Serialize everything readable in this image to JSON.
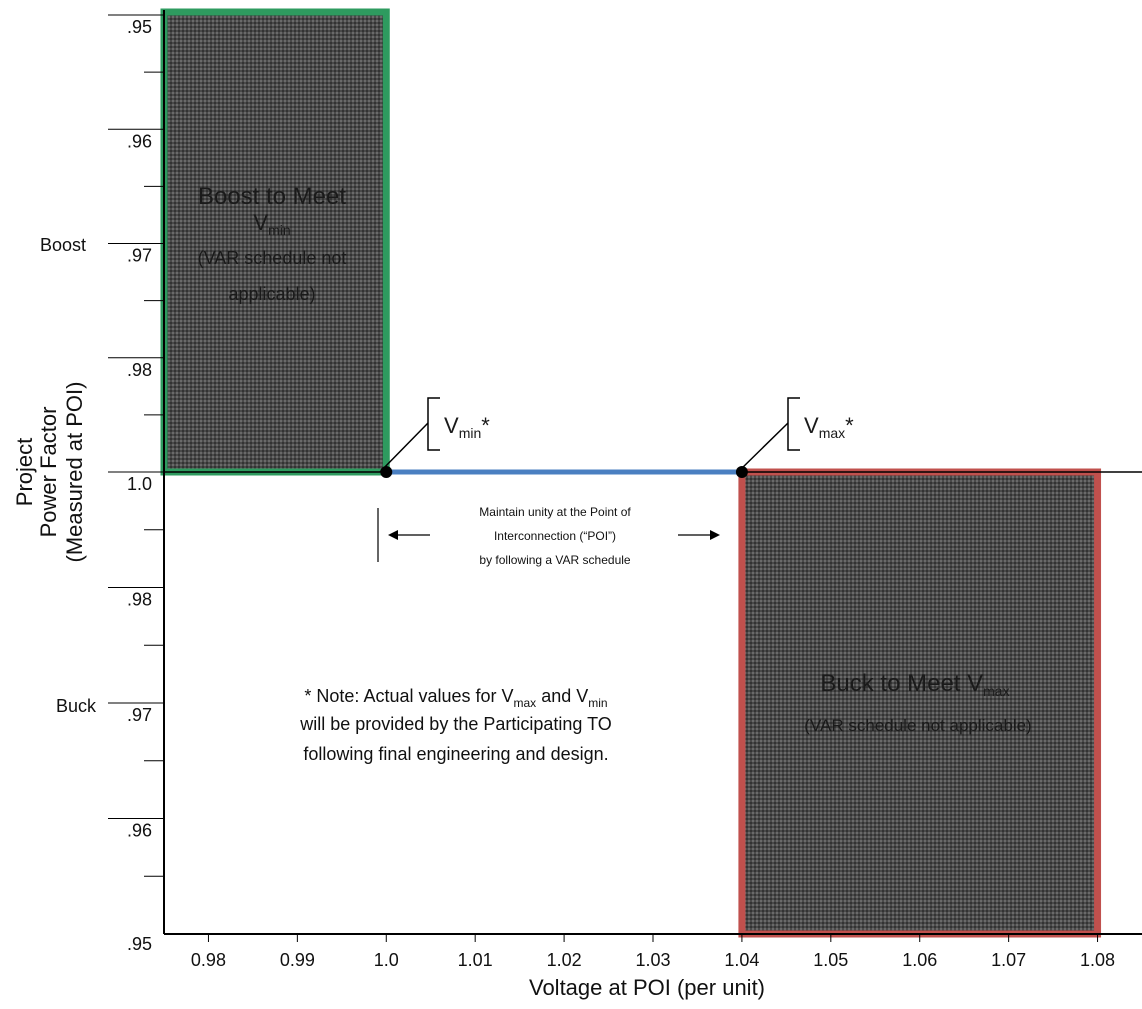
{
  "chart_data": {
    "type": "area",
    "x_axis": {
      "label": "Voltage at POI (per unit)",
      "ticks": [
        "0.98",
        "0.99",
        "1.0",
        "1.01",
        "1.02",
        "1.03",
        "1.04",
        "1.05",
        "1.06",
        "1.07",
        "1.08"
      ],
      "range": [
        0.975,
        1.085
      ]
    },
    "y_axis": {
      "label_lines": [
        "Project",
        "Power Factor",
        "(Measured at POI)"
      ],
      "upper_ticks": [
        ".95",
        ".96",
        ".97",
        ".98"
      ],
      "center_tick": "1.0",
      "lower_ticks": [
        ".98",
        ".97",
        ".96"
      ],
      "bottom_tick": ".95",
      "boost_label": "Boost",
      "buck_label": "Buck"
    },
    "regions": [
      {
        "name": "boost-region",
        "x_range": [
          0.975,
          1.0
        ],
        "pf_range": [
          "1.0",
          ".95 boost"
        ],
        "color": "#2e9b5f",
        "title": "Boost to Meet",
        "var_symbol": "V",
        "var_sub": "min",
        "note_line1": "(VAR schedule not",
        "note_line2": "applicable)"
      },
      {
        "name": "buck-region",
        "x_range": [
          1.04,
          1.08
        ],
        "pf_range": [
          "1.0",
          ".95 buck"
        ],
        "color": "#c0504d",
        "title": "Buck to Meet V",
        "var_sub": "max",
        "note_line1": "(VAR schedule not applicable)"
      }
    ],
    "unity_line": {
      "x_range": [
        1.0,
        1.04
      ],
      "pf": "1.0",
      "color": "#4a7fc1",
      "text_lines": [
        "Maintain unity at the Point of",
        "Interconnection (“POI”)",
        "by following a VAR schedule"
      ]
    },
    "points": [
      {
        "x": 1.0,
        "pf": "1.0",
        "label": "V",
        "sub": "min",
        "suffix": "*"
      },
      {
        "x": 1.04,
        "pf": "1.0",
        "label": "V",
        "sub": "max",
        "suffix": "*"
      }
    ],
    "note": {
      "line1_prefix": "* Note: Actual values for V",
      "line1_sub1": "max",
      "line1_mid": " and V",
      "line1_sub2": "min",
      "line2": "will be provided by the Participating TO",
      "line3": "following final engineering and design."
    }
  }
}
